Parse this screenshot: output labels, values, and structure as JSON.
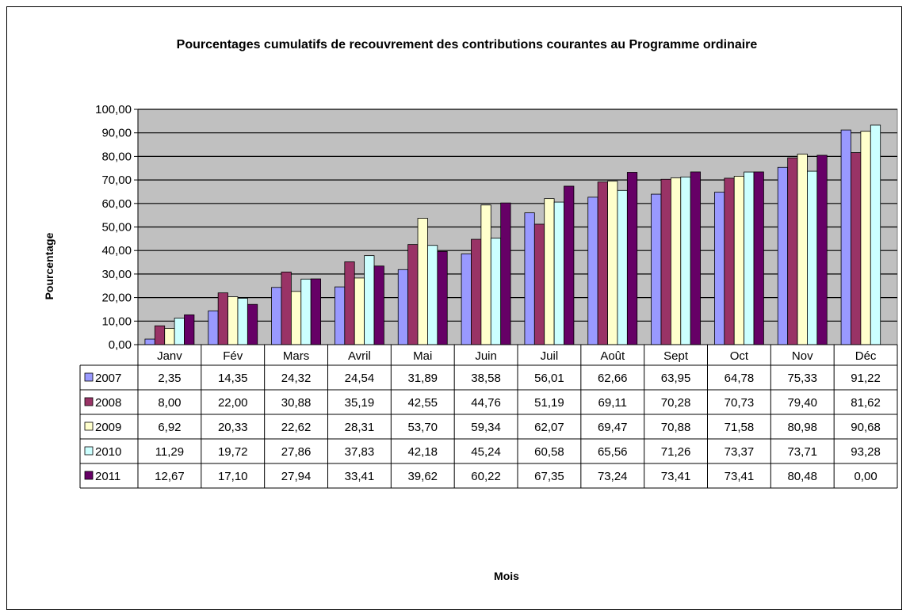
{
  "chart_data": {
    "type": "bar",
    "title": "Pourcentages cumulatifs de recouvrement des contributions courantes au Programme ordinaire",
    "xlabel": "Mois",
    "ylabel": "Pourcentage",
    "ylim": [
      0,
      100
    ],
    "yticks": [
      "0,00",
      "10,00",
      "20,00",
      "30,00",
      "40,00",
      "50,00",
      "60,00",
      "70,00",
      "80,00",
      "90,00",
      "100,00"
    ],
    "grid": true,
    "legend": "data-table",
    "categories": [
      "Janv",
      "Fév",
      "Mars",
      "Avril",
      "Mai",
      "Juin",
      "Juil",
      "Août",
      "Sept",
      "Oct",
      "Nov",
      "Déc"
    ],
    "series": [
      {
        "name": "2007",
        "color": "#9999FF",
        "values": [
          2.35,
          14.35,
          24.32,
          24.54,
          31.89,
          38.58,
          56.01,
          62.66,
          63.95,
          64.78,
          75.33,
          91.22
        ],
        "labels": [
          "2,35",
          "14,35",
          "24,32",
          "24,54",
          "31,89",
          "38,58",
          "56,01",
          "62,66",
          "63,95",
          "64,78",
          "75,33",
          "91,22"
        ]
      },
      {
        "name": "2008",
        "color": "#993366",
        "values": [
          8.0,
          22.0,
          30.88,
          35.19,
          42.55,
          44.76,
          51.19,
          69.11,
          70.28,
          70.73,
          79.4,
          81.62
        ],
        "labels": [
          "8,00",
          "22,00",
          "30,88",
          "35,19",
          "42,55",
          "44,76",
          "51,19",
          "69,11",
          "70,28",
          "70,73",
          "79,40",
          "81,62"
        ]
      },
      {
        "name": "2009",
        "color": "#FFFFCC",
        "values": [
          6.92,
          20.33,
          22.62,
          28.31,
          53.7,
          59.34,
          62.07,
          69.47,
          70.88,
          71.58,
          80.98,
          90.68
        ],
        "labels": [
          "6,92",
          "20,33",
          "22,62",
          "28,31",
          "53,70",
          "59,34",
          "62,07",
          "69,47",
          "70,88",
          "71,58",
          "80,98",
          "90,68"
        ]
      },
      {
        "name": "2010",
        "color": "#CCFFFF",
        "values": [
          11.29,
          19.72,
          27.86,
          37.83,
          42.18,
          45.24,
          60.58,
          65.56,
          71.26,
          73.37,
          73.71,
          93.28
        ],
        "labels": [
          "11,29",
          "19,72",
          "27,86",
          "37,83",
          "42,18",
          "45,24",
          "60,58",
          "65,56",
          "71,26",
          "73,37",
          "73,71",
          "93,28"
        ]
      },
      {
        "name": "2011",
        "color": "#660066",
        "values": [
          12.67,
          17.1,
          27.94,
          33.41,
          39.62,
          60.22,
          67.35,
          73.24,
          73.41,
          73.41,
          80.48,
          0.0
        ],
        "labels": [
          "12,67",
          "17,10",
          "27,94",
          "33,41",
          "39,62",
          "60,22",
          "67,35",
          "73,24",
          "73,41",
          "73,41",
          "80,48",
          "0,00"
        ]
      }
    ],
    "plot_background": "#C0C0C0"
  }
}
